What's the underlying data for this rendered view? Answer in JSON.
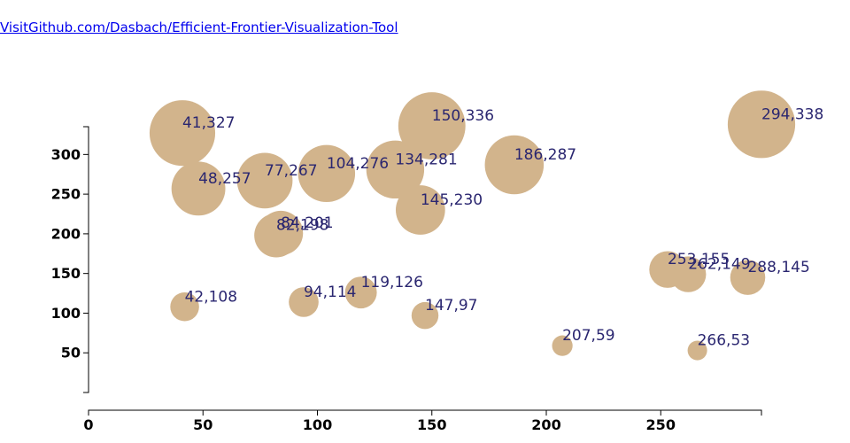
{
  "link": {
    "text": "VisitGithub.com/Dasbach/Efficient-Frontier-Visualization-Tool"
  },
  "colors": {
    "bubble": "#d2b48c",
    "label": "#2a2670",
    "axis": "#000000",
    "link": "#0000ee"
  },
  "chart_data": {
    "type": "scatter",
    "title": "",
    "xlabel": "",
    "ylabel": "",
    "xlim": [
      0,
      294
    ],
    "ylim": [
      0,
      335
    ],
    "x_ticks": [
      0,
      50,
      100,
      150,
      200,
      250
    ],
    "y_ticks": [
      50,
      100,
      150,
      200,
      250,
      300
    ],
    "grid": false,
    "points": [
      {
        "x": 41,
        "y": 327,
        "r": 327,
        "label": "41,327"
      },
      {
        "x": 48,
        "y": 257,
        "r": 257,
        "label": "48,257"
      },
      {
        "x": 77,
        "y": 267,
        "r": 267,
        "label": "77,267"
      },
      {
        "x": 104,
        "y": 276,
        "r": 276,
        "label": "104,276"
      },
      {
        "x": 134,
        "y": 281,
        "r": 281,
        "label": "134,281"
      },
      {
        "x": 150,
        "y": 336,
        "r": 336,
        "label": "150,336"
      },
      {
        "x": 186,
        "y": 287,
        "r": 287,
        "label": "186,287"
      },
      {
        "x": 294,
        "y": 338,
        "r": 338,
        "label": "294,338"
      },
      {
        "x": 145,
        "y": 230,
        "r": 230,
        "label": "145,230"
      },
      {
        "x": 84,
        "y": 201,
        "r": 201,
        "label": "84,201"
      },
      {
        "x": 82,
        "y": 198,
        "r": 198,
        "label": "82,198"
      },
      {
        "x": 42,
        "y": 108,
        "r": 108,
        "label": "42,108"
      },
      {
        "x": 94,
        "y": 114,
        "r": 114,
        "label": "94,114"
      },
      {
        "x": 119,
        "y": 126,
        "r": 126,
        "label": "119,126"
      },
      {
        "x": 147,
        "y": 97,
        "r": 97,
        "label": "147,97"
      },
      {
        "x": 207,
        "y": 59,
        "r": 59,
        "label": "207,59"
      },
      {
        "x": 253,
        "y": 155,
        "r": 155,
        "label": "253,155"
      },
      {
        "x": 262,
        "y": 149,
        "r": 149,
        "label": "262,149"
      },
      {
        "x": 288,
        "y": 145,
        "r": 145,
        "label": "288,145"
      },
      {
        "x": 266,
        "y": 53,
        "r": 53,
        "label": "266,53"
      }
    ]
  }
}
